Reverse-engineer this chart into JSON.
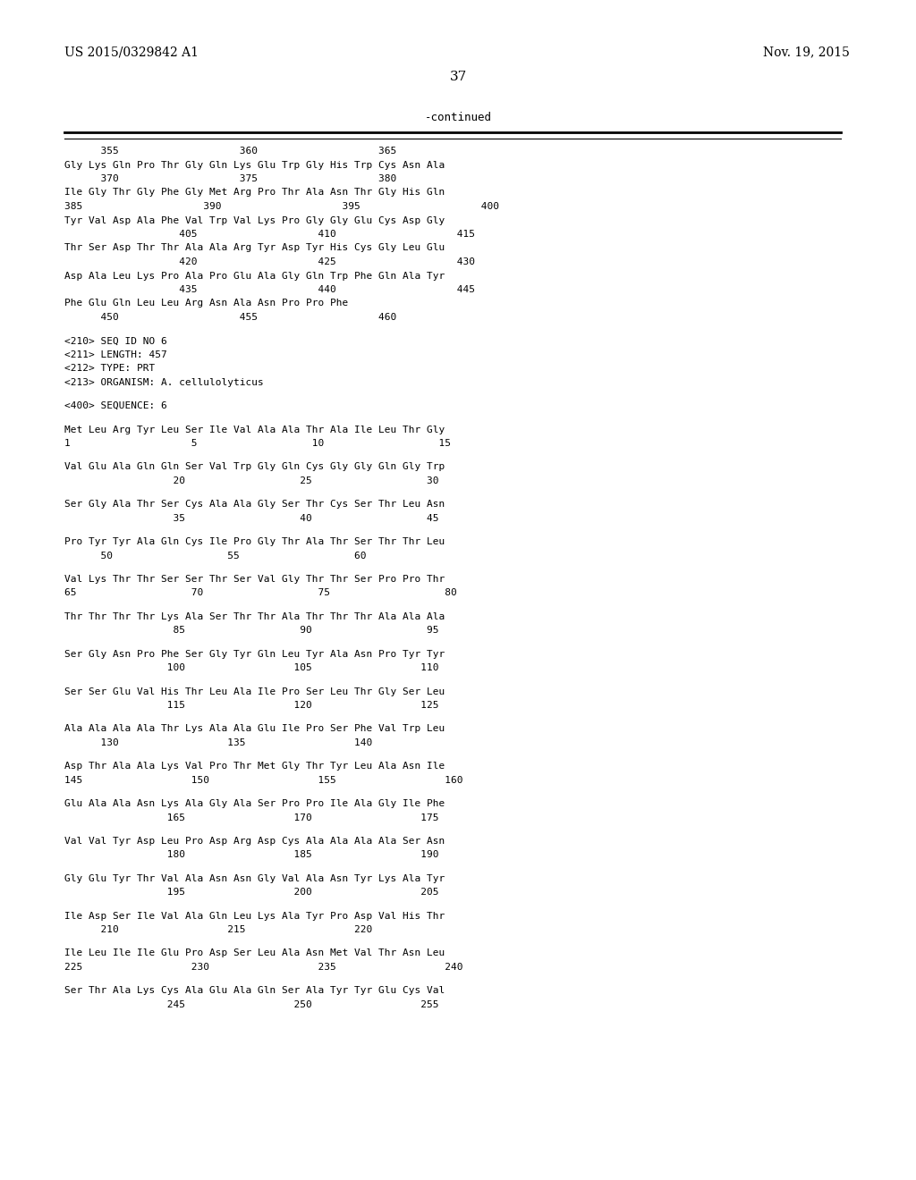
{
  "background_color": "#ffffff",
  "text_color": "#000000",
  "header_left": "US 2015/0329842 A1",
  "header_right": "Nov. 19, 2015",
  "page_number": "37",
  "continued_label": "-continued",
  "content_lines": [
    "      355                    360                    365",
    "Gly Lys Gln Pro Thr Gly Gln Lys Glu Trp Gly His Trp Cys Asn Ala",
    "      370                    375                    380",
    "Ile Gly Thr Gly Phe Gly Met Arg Pro Thr Ala Asn Thr Gly His Gln",
    "385                    390                    395                    400",
    "Tyr Val Asp Ala Phe Val Trp Val Lys Pro Gly Gly Glu Cys Asp Gly",
    "                   405                    410                    415",
    "Thr Ser Asp Thr Thr Ala Ala Arg Tyr Asp Tyr His Cys Gly Leu Glu",
    "                   420                    425                    430",
    "Asp Ala Leu Lys Pro Ala Pro Glu Ala Gly Gln Trp Phe Gln Ala Tyr",
    "                   435                    440                    445",
    "Phe Glu Gln Leu Leu Arg Asn Ala Asn Pro Pro Phe",
    "      450                    455                    460",
    "",
    "<210> SEQ ID NO 6",
    "<211> LENGTH: 457",
    "<212> TYPE: PRT",
    "<213> ORGANISM: A. cellulolyticus",
    "",
    "<400> SEQUENCE: 6",
    "",
    "Met Leu Arg Tyr Leu Ser Ile Val Ala Ala Thr Ala Ile Leu Thr Gly",
    "1                    5                   10                   15",
    "",
    "Val Glu Ala Gln Gln Ser Val Trp Gly Gln Cys Gly Gly Gln Gly Trp",
    "                  20                   25                   30",
    "",
    "Ser Gly Ala Thr Ser Cys Ala Ala Gly Ser Thr Cys Ser Thr Leu Asn",
    "                  35                   40                   45",
    "",
    "Pro Tyr Tyr Ala Gln Cys Ile Pro Gly Thr Ala Thr Ser Thr Thr Leu",
    "      50                   55                   60",
    "",
    "Val Lys Thr Thr Ser Ser Thr Ser Val Gly Thr Thr Ser Pro Pro Thr",
    "65                   70                   75                   80",
    "",
    "Thr Thr Thr Thr Lys Ala Ser Thr Thr Ala Thr Thr Thr Ala Ala Ala",
    "                  85                   90                   95",
    "",
    "Ser Gly Asn Pro Phe Ser Gly Tyr Gln Leu Tyr Ala Asn Pro Tyr Tyr",
    "                 100                  105                  110",
    "",
    "Ser Ser Glu Val His Thr Leu Ala Ile Pro Ser Leu Thr Gly Ser Leu",
    "                 115                  120                  125",
    "",
    "Ala Ala Ala Ala Thr Lys Ala Ala Glu Ile Pro Ser Phe Val Trp Leu",
    "      130                  135                  140",
    "",
    "Asp Thr Ala Ala Lys Val Pro Thr Met Gly Thr Tyr Leu Ala Asn Ile",
    "145                  150                  155                  160",
    "",
    "Glu Ala Ala Asn Lys Ala Gly Ala Ser Pro Pro Ile Ala Gly Ile Phe",
    "                 165                  170                  175",
    "",
    "Val Val Tyr Asp Leu Pro Asp Arg Asp Cys Ala Ala Ala Ala Ser Asn",
    "                 180                  185                  190",
    "",
    "Gly Glu Tyr Thr Val Ala Asn Asn Gly Val Ala Asn Tyr Lys Ala Tyr",
    "                 195                  200                  205",
    "",
    "Ile Asp Ser Ile Val Ala Gln Leu Lys Ala Tyr Pro Asp Val His Thr",
    "      210                  215                  220",
    "",
    "Ile Leu Ile Ile Glu Pro Asp Ser Leu Ala Asn Met Val Thr Asn Leu",
    "225                  230                  235                  240",
    "",
    "Ser Thr Ala Lys Cys Ala Glu Ala Gln Ser Ala Tyr Tyr Glu Cys Val",
    "                 245                  250                  255"
  ]
}
